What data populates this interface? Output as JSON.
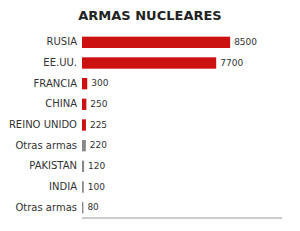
{
  "chart_data": {
    "type": "bar",
    "orientation": "horizontal",
    "title": "ARMAS NUCLEARES",
    "categories": [
      "RUSIA",
      "EE.UU.",
      "FRANCIA",
      "CHINA",
      "REINO UNIDO",
      "Otras armas",
      "PAKISTAN",
      "INDIA",
      "Otras armas"
    ],
    "values": [
      8500,
      7700,
      300,
      250,
      225,
      220,
      120,
      100,
      80
    ],
    "colors": [
      "#cc1111",
      "#cc1111",
      "#cc1111",
      "#cc1111",
      "#cc1111",
      "#888888",
      "#888888",
      "#888888",
      "#888888"
    ],
    "xlim": [
      0,
      11475
    ],
    "tick_labels": "y",
    "data_labels": true,
    "grid": false
  }
}
